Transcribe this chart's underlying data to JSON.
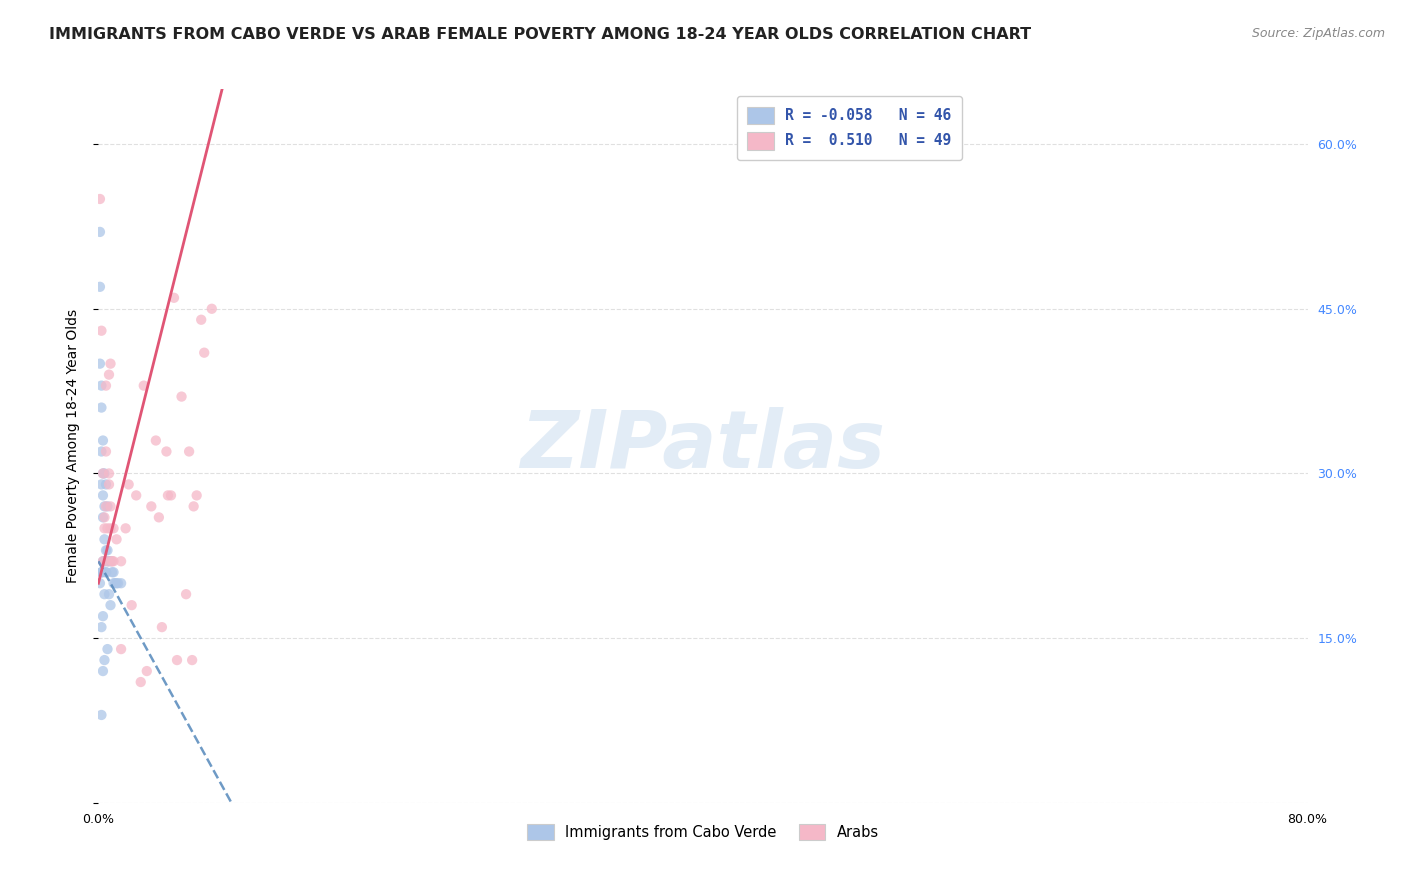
{
  "title": "IMMIGRANTS FROM CABO VERDE VS ARAB FEMALE POVERTY AMONG 18-24 YEAR OLDS CORRELATION CHART",
  "source": "Source: ZipAtlas.com",
  "ylabel": "Female Poverty Among 18-24 Year Olds",
  "xlim": [
    0.0,
    0.8
  ],
  "ylim": [
    0.0,
    0.65
  ],
  "yticks": [
    0.0,
    0.15,
    0.3,
    0.45,
    0.6
  ],
  "xticks": [
    0.0,
    0.1,
    0.2,
    0.3,
    0.4,
    0.5,
    0.6,
    0.7,
    0.8
  ],
  "blue_color": "#adc6e8",
  "pink_color": "#f5b8c8",
  "blue_line_color": "#5588bb",
  "pink_line_color": "#e05575",
  "legend_blue_label": "Immigrants from Cabo Verde",
  "legend_pink_label": "Arabs",
  "R_blue": "-0.058",
  "N_blue": "46",
  "R_pink": "0.510",
  "N_pink": "49",
  "blue_scatter_x": [
    0.001,
    0.001,
    0.002,
    0.002,
    0.002,
    0.003,
    0.003,
    0.003,
    0.004,
    0.004,
    0.004,
    0.005,
    0.005,
    0.006,
    0.006,
    0.007,
    0.008,
    0.009,
    0.01,
    0.01,
    0.011,
    0.012,
    0.013,
    0.015,
    0.001,
    0.002,
    0.003,
    0.004,
    0.005,
    0.006,
    0.002,
    0.003,
    0.004,
    0.003,
    0.002,
    0.001,
    0.005,
    0.004,
    0.003,
    0.002,
    0.007,
    0.008,
    0.006,
    0.004,
    0.003,
    0.002
  ],
  "blue_scatter_y": [
    0.47,
    0.4,
    0.36,
    0.32,
    0.29,
    0.3,
    0.28,
    0.26,
    0.27,
    0.24,
    0.22,
    0.23,
    0.21,
    0.23,
    0.22,
    0.22,
    0.22,
    0.21,
    0.21,
    0.2,
    0.2,
    0.2,
    0.2,
    0.2,
    0.52,
    0.38,
    0.33,
    0.3,
    0.29,
    0.27,
    0.21,
    0.22,
    0.22,
    0.21,
    0.21,
    0.2,
    0.21,
    0.19,
    0.17,
    0.16,
    0.19,
    0.18,
    0.14,
    0.13,
    0.12,
    0.08
  ],
  "pink_scatter_x": [
    0.001,
    0.002,
    0.003,
    0.004,
    0.005,
    0.006,
    0.007,
    0.008,
    0.009,
    0.01,
    0.005,
    0.008,
    0.006,
    0.007,
    0.009,
    0.003,
    0.005,
    0.008,
    0.01,
    0.004,
    0.007,
    0.012,
    0.015,
    0.018,
    0.02,
    0.025,
    0.03,
    0.035,
    0.04,
    0.045,
    0.05,
    0.055,
    0.06,
    0.065,
    0.07,
    0.075,
    0.042,
    0.048,
    0.032,
    0.028,
    0.052,
    0.058,
    0.063,
    0.068,
    0.015,
    0.022,
    0.038,
    0.046,
    0.062
  ],
  "pink_scatter_y": [
    0.55,
    0.43,
    0.22,
    0.25,
    0.32,
    0.22,
    0.29,
    0.27,
    0.22,
    0.25,
    0.38,
    0.4,
    0.25,
    0.39,
    0.22,
    0.3,
    0.27,
    0.25,
    0.22,
    0.26,
    0.3,
    0.24,
    0.22,
    0.25,
    0.29,
    0.28,
    0.38,
    0.27,
    0.26,
    0.32,
    0.46,
    0.37,
    0.32,
    0.28,
    0.41,
    0.45,
    0.16,
    0.28,
    0.12,
    0.11,
    0.13,
    0.19,
    0.27,
    0.44,
    0.14,
    0.18,
    0.33,
    0.28,
    0.13
  ],
  "blue_trend": [
    -2.5,
    0.22
  ],
  "pink_trend": [
    5.5,
    0.2
  ],
  "background_color": "#ffffff",
  "watermark_text": "ZIPatlas",
  "watermark_color": "#d0e0f0",
  "grid_color": "#e0e0e0",
  "title_fontsize": 11.5,
  "axis_label_fontsize": 10,
  "tick_fontsize": 9,
  "tick_color_right": "#4488ff",
  "scatter_size": 55,
  "scatter_alpha": 0.75
}
